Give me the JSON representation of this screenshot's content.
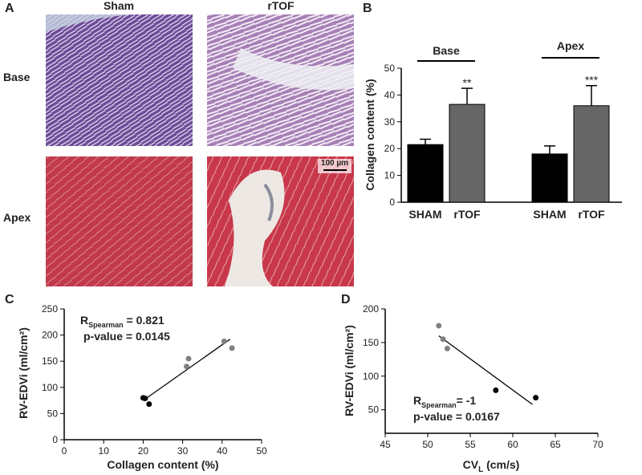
{
  "panel_a": {
    "label": "A",
    "columns": [
      "Sham",
      "rTOF"
    ],
    "rows": [
      "Base",
      "Apex"
    ],
    "scale_bar": "100 µm"
  },
  "chart_data": [
    {
      "type": "bar",
      "panel_label": "B",
      "ylabel": "Collagen content (%)",
      "categories": [
        "SHAM",
        "rTOF",
        "SHAM",
        "rTOF"
      ],
      "groups": [
        "Base",
        "Apex"
      ],
      "values": [
        21.5,
        36.5,
        18,
        36
      ],
      "errors": [
        2,
        6,
        3,
        7.5
      ],
      "significance": [
        null,
        "**",
        null,
        "***"
      ],
      "colors": [
        "#000000",
        "#666666",
        "#000000",
        "#666666"
      ],
      "ylim": [
        0,
        50
      ],
      "yticks": [
        0,
        10,
        20,
        30,
        40,
        50
      ]
    },
    {
      "type": "scatter",
      "panel_label": "C",
      "xlabel": "Collagen content (%)",
      "ylabel": "RV-EDVi (ml/cm²)",
      "annotation": {
        "r": "R",
        "r_sub": "Spearman",
        "r_value": " = 0.821",
        "p": "p-value = 0.0145"
      },
      "series": [
        {
          "color": "#808080",
          "x": [
            31,
            31.5,
            40.5,
            42.5
          ],
          "values": [
            140,
            155,
            188,
            175
          ]
        },
        {
          "color": "#000000",
          "x": [
            20,
            20.5,
            21.5
          ],
          "values": [
            80,
            79,
            68
          ]
        }
      ],
      "fit": {
        "x": [
          20,
          42
        ],
        "y": [
          75,
          192
        ]
      },
      "xlim": [
        0,
        50
      ],
      "xticks": [
        0,
        10,
        20,
        30,
        40,
        50
      ],
      "ylim": [
        0,
        250
      ],
      "yticks": [
        0,
        50,
        100,
        150,
        200,
        250
      ]
    },
    {
      "type": "scatter",
      "panel_label": "D",
      "xlabel": {
        "main": "CV",
        "sub": "L",
        "rest": " (cm/s)"
      },
      "ylabel": "RV-EDVi (ml/cm²)",
      "annotation": {
        "r": "R",
        "r_sub": "Spearman",
        "r_value": "= -1",
        "p": "p-value = 0.0167"
      },
      "series": [
        {
          "color": "#808080",
          "x": [
            51.3,
            51.8,
            52.3
          ],
          "values": [
            175,
            155,
            141
          ]
        },
        {
          "color": "#000000",
          "x": [
            58,
            62.7
          ],
          "values": [
            79,
            68
          ]
        }
      ],
      "fit": {
        "x": [
          51.3,
          62.3
        ],
        "y": [
          160,
          58
        ]
      },
      "xlim": [
        45,
        70
      ],
      "xticks": [
        45,
        50,
        55,
        60,
        65,
        70
      ],
      "ylim": [
        15,
        200
      ],
      "yticks": [
        50,
        100,
        150,
        200
      ]
    }
  ]
}
